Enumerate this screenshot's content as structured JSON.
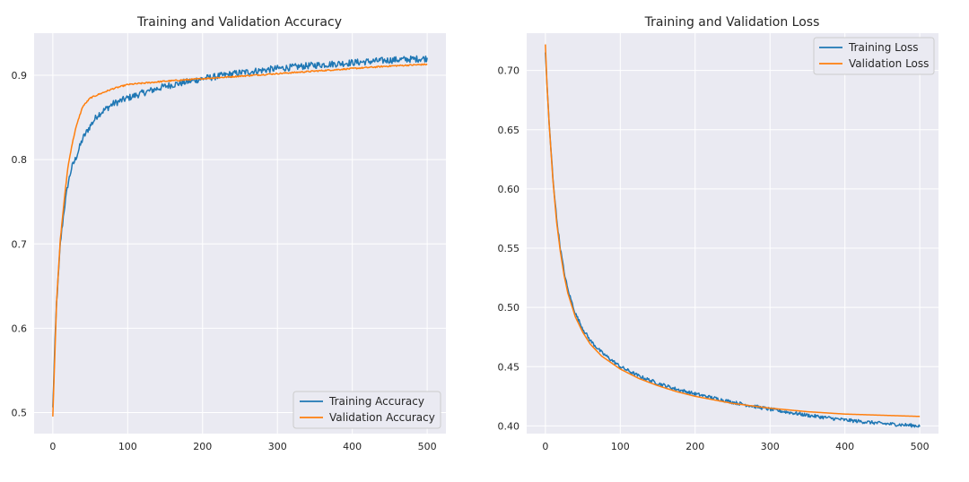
{
  "colors": {
    "plot_bg": "#eaeaf2",
    "grid": "#ffffff",
    "training": "#1f77b4",
    "validation": "#ff7f0e"
  },
  "chart_data": [
    {
      "type": "line",
      "title": "Training and Validation Accuracy",
      "xlabel": "",
      "ylabel": "",
      "xlim": [
        -25,
        525
      ],
      "ylim": [
        0.475,
        0.95
      ],
      "x_ticks": [
        0,
        100,
        200,
        300,
        400,
        500
      ],
      "y_ticks": [
        0.5,
        0.6,
        0.7,
        0.8,
        0.9
      ],
      "grid": true,
      "legend_position": "lower-right",
      "series": [
        {
          "name": "Training Accuracy",
          "color": "#1f77b4",
          "noise": 0.004,
          "x": [
            0,
            2,
            5,
            8,
            10,
            15,
            20,
            25,
            30,
            40,
            50,
            60,
            80,
            100,
            120,
            150,
            200,
            250,
            300,
            350,
            400,
            450,
            500
          ],
          "y": [
            0.505,
            0.56,
            0.63,
            0.67,
            0.7,
            0.74,
            0.77,
            0.79,
            0.8,
            0.825,
            0.84,
            0.853,
            0.866,
            0.873,
            0.879,
            0.887,
            0.896,
            0.903,
            0.908,
            0.912,
            0.915,
            0.918,
            0.92
          ]
        },
        {
          "name": "Validation Accuracy",
          "color": "#ff7f0e",
          "noise": 0.0008,
          "x": [
            0,
            2,
            5,
            8,
            10,
            15,
            20,
            25,
            30,
            35,
            40,
            50,
            60,
            80,
            100,
            150,
            200,
            250,
            300,
            350,
            400,
            450,
            500
          ],
          "y": [
            0.496,
            0.55,
            0.63,
            0.675,
            0.705,
            0.75,
            0.79,
            0.815,
            0.835,
            0.85,
            0.863,
            0.873,
            0.877,
            0.884,
            0.889,
            0.893,
            0.896,
            0.899,
            0.902,
            0.905,
            0.908,
            0.911,
            0.913
          ]
        }
      ]
    },
    {
      "type": "line",
      "title": "Training and Validation Loss",
      "xlabel": "",
      "ylabel": "",
      "xlim": [
        -25,
        525
      ],
      "ylim": [
        0.3935,
        0.7315
      ],
      "x_ticks": [
        0,
        100,
        200,
        300,
        400,
        500
      ],
      "y_ticks": [
        0.4,
        0.45,
        0.5,
        0.55,
        0.6,
        0.65,
        0.7
      ],
      "grid": true,
      "legend_position": "upper-right",
      "series": [
        {
          "name": "Training Loss",
          "color": "#1f77b4",
          "noise": 0.0015,
          "x": [
            0,
            2,
            5,
            10,
            15,
            20,
            25,
            30,
            40,
            50,
            60,
            75,
            100,
            125,
            150,
            175,
            200,
            250,
            300,
            350,
            400,
            450,
            500
          ],
          "y": [
            0.715,
            0.69,
            0.655,
            0.61,
            0.575,
            0.55,
            0.53,
            0.515,
            0.495,
            0.482,
            0.472,
            0.462,
            0.45,
            0.442,
            0.436,
            0.431,
            0.427,
            0.42,
            0.414,
            0.409,
            0.405,
            0.402,
            0.4
          ]
        },
        {
          "name": "Validation Loss",
          "color": "#ff7f0e",
          "noise": 0.0,
          "x": [
            0,
            2,
            5,
            10,
            15,
            20,
            25,
            30,
            40,
            50,
            60,
            75,
            100,
            125,
            150,
            175,
            200,
            250,
            300,
            350,
            400,
            450,
            500
          ],
          "y": [
            0.722,
            0.69,
            0.655,
            0.608,
            0.572,
            0.547,
            0.527,
            0.512,
            0.492,
            0.479,
            0.469,
            0.459,
            0.448,
            0.44,
            0.434,
            0.429,
            0.425,
            0.419,
            0.415,
            0.412,
            0.41,
            0.409,
            0.408
          ]
        }
      ]
    }
  ]
}
